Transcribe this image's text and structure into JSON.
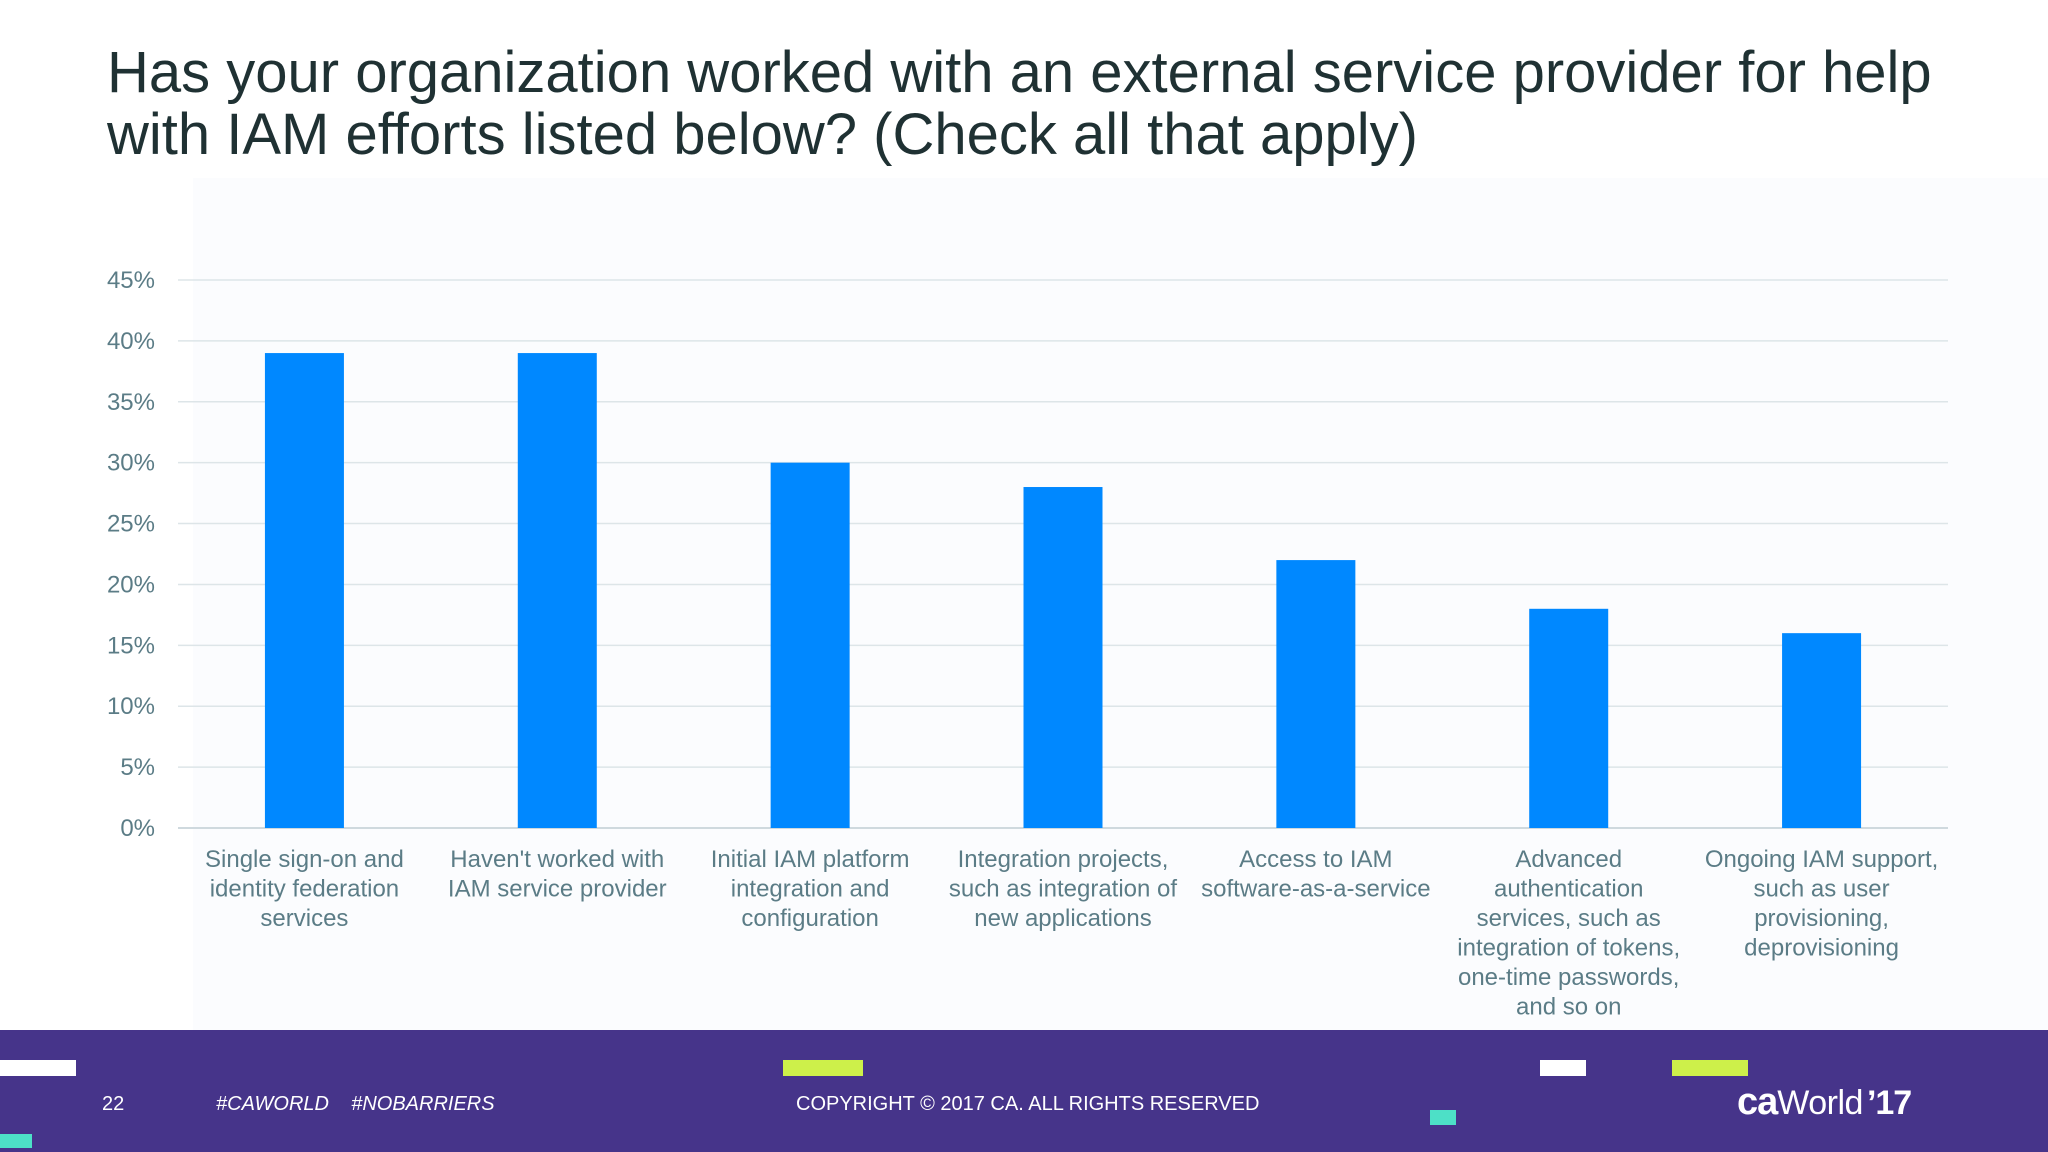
{
  "slide": {
    "title_lines": [
      "Has your organization worked with an external service provider for help",
      "with IAM efforts listed below? (Check all that apply)"
    ]
  },
  "chart_data": {
    "type": "bar",
    "title": "Has your organization worked with an external service provider for help with IAM efforts listed below? (Check all that apply)",
    "categories": [
      [
        "Single sign-on and",
        "identity federation",
        "services"
      ],
      [
        "Haven't worked with",
        "IAM service provider"
      ],
      [
        "Initial IAM platform",
        "integration and",
        "configuration"
      ],
      [
        "Integration projects,",
        "such as integration of",
        "new applications"
      ],
      [
        "Access to IAM",
        "software-as-a-service"
      ],
      [
        "Advanced",
        "authentication",
        "services, such as",
        "integration of tokens,",
        "one-time passwords,",
        "and so on"
      ],
      [
        "Ongoing IAM support,",
        "such as user",
        "provisioning,",
        "deprovisioning"
      ]
    ],
    "values": [
      39,
      39,
      30,
      28,
      22,
      18,
      16
    ],
    "value_unit": "%",
    "ylim": [
      0,
      45
    ],
    "yticks": [
      "0%",
      "5%",
      "10%",
      "15%",
      "20%",
      "25%",
      "30%",
      "35%",
      "40%",
      "45%"
    ],
    "grid": true,
    "bar_color": "#0088ff",
    "xlabel": "",
    "ylabel": ""
  },
  "footer": {
    "page_number": "22",
    "hashtags": "#CAWORLD    #NOBARRIERS",
    "copyright": "COPYRIGHT © 2017 CA. ALL RIGHTS RESERVED",
    "logo": {
      "ca": "ca",
      "world": "World",
      "year": "’17"
    },
    "background_color": "#46348a"
  }
}
